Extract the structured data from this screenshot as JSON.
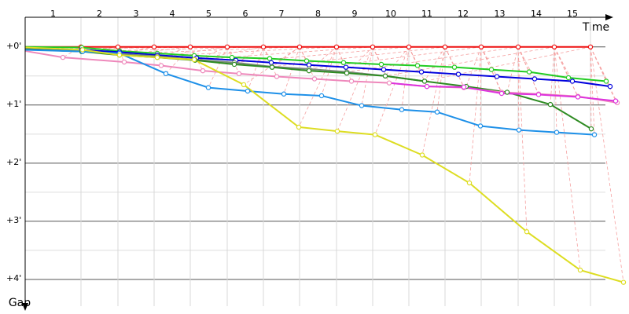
{
  "chart_data": {
    "type": "line",
    "x_label": "Time",
    "y_label": "Gap",
    "laps": [
      "1",
      "2",
      "3",
      "4",
      "5",
      "6",
      "7",
      "8",
      "9",
      "10",
      "11",
      "12",
      "13",
      "14",
      "15"
    ],
    "xlim": [
      0,
      768
    ],
    "ylim": [
      -0.51,
      4.46
    ],
    "yticks": [
      {
        "value": 0,
        "label": "+0'"
      },
      {
        "value": 1,
        "label": "+1'"
      },
      {
        "value": 2,
        "label": "+2'"
      },
      {
        "value": 3,
        "label": "+3'"
      },
      {
        "value": 4,
        "label": "+4'"
      }
    ],
    "minor_yticks": [
      0.5,
      1.5,
      2.5,
      3.5
    ],
    "grid": true,
    "series": [
      {
        "color": "#ee1111",
        "x": [
          0,
          71,
          118,
          164,
          210,
          257,
          303,
          349,
          396,
          442,
          488,
          534,
          580,
          627,
          673,
          719
        ],
        "values": [
          0,
          0,
          0,
          0,
          0,
          0,
          0,
          0,
          0,
          0,
          0,
          0,
          0,
          0,
          0,
          0
        ]
      },
      {
        "color": "#22cc22",
        "x": [
          0,
          72,
          120,
          168,
          215,
          263,
          311,
          358,
          405,
          453,
          499,
          546,
          593,
          641,
          691,
          739
        ],
        "values": [
          0,
          0.01,
          0.07,
          0.11,
          0.15,
          0.18,
          0.2,
          0.24,
          0.27,
          0.3,
          0.32,
          0.35,
          0.39,
          0.43,
          0.53,
          0.59
        ]
      },
      {
        "color": "#0000dd",
        "x": [
          0,
          72,
          120,
          168,
          218,
          268,
          313,
          361,
          408,
          456,
          504,
          551,
          600,
          648,
          696,
          744
        ],
        "values": [
          0.03,
          0.05,
          0.09,
          0.14,
          0.19,
          0.23,
          0.27,
          0.31,
          0.35,
          0.39,
          0.43,
          0.47,
          0.51,
          0.55,
          0.59,
          0.68
        ]
      },
      {
        "color": "#778877",
        "x": [
          0,
          72,
          120,
          168,
          216,
          266,
          314,
          361,
          409,
          458,
          508
        ],
        "values": [
          0.04,
          0.08,
          0.12,
          0.16,
          0.22,
          0.27,
          0.34,
          0.38,
          0.43,
          0.5,
          0.59
        ]
      },
      {
        "color": "#2e8b22",
        "x": [
          0,
          72,
          120,
          168,
          216,
          266,
          314,
          361,
          409,
          458,
          508,
          561,
          613,
          668,
          720
        ],
        "values": [
          0.04,
          0.08,
          0.14,
          0.18,
          0.23,
          0.3,
          0.35,
          0.41,
          0.45,
          0.5,
          0.59,
          0.68,
          0.78,
          0.99,
          1.41
        ]
      },
      {
        "color": "#ee88bb",
        "x": [
          0,
          48,
          126,
          173,
          226,
          272,
          320,
          368,
          415,
          463,
          511,
          558,
          606,
          653,
          703,
          753
        ],
        "values": [
          0.07,
          0.18,
          0.26,
          0.32,
          0.41,
          0.46,
          0.51,
          0.55,
          0.59,
          0.62,
          0.68,
          0.7,
          0.78,
          0.81,
          0.85,
          0.96
        ]
      },
      {
        "color": "#dd33dd",
        "x": [
          463,
          511,
          558,
          606,
          653,
          703,
          751
        ],
        "values": [
          0.62,
          0.68,
          0.69,
          0.8,
          0.82,
          0.86,
          0.93
        ]
      },
      {
        "color": "#1e90e8",
        "x": [
          0,
          73,
          120,
          179,
          233,
          283,
          329,
          377,
          428,
          479,
          524,
          579,
          628,
          676,
          724
        ],
        "values": [
          0.05,
          0.08,
          0.11,
          0.46,
          0.7,
          0.76,
          0.81,
          0.84,
          1.01,
          1.08,
          1.12,
          1.36,
          1.43,
          1.47,
          1.51
        ]
      },
      {
        "color": "#dddd22",
        "x": [
          0,
          73,
          120,
          168,
          215,
          278,
          348,
          397,
          445,
          505,
          565,
          638,
          706,
          761
        ],
        "values": [
          0.01,
          0.05,
          0.14,
          0.18,
          0.22,
          0.65,
          1.38,
          1.45,
          1.51,
          1.86,
          2.34,
          3.18,
          3.84,
          4.05
        ]
      }
    ]
  }
}
